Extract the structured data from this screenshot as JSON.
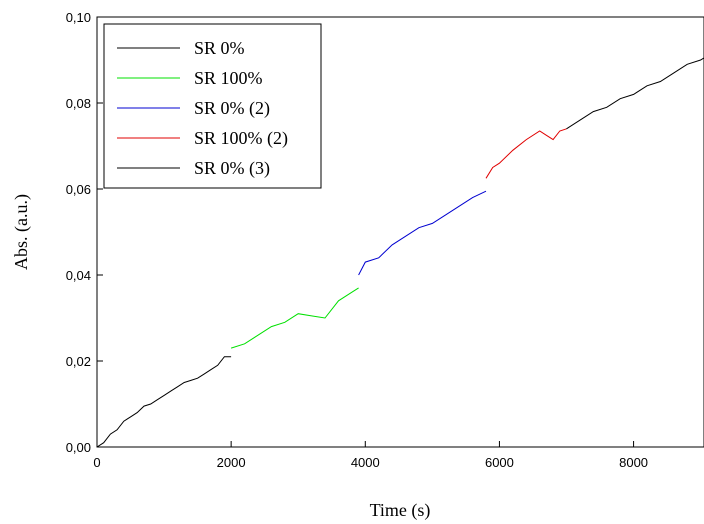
{
  "chart_data": {
    "type": "line",
    "xlabel": "Time (s)",
    "ylabel": "Abs. (a.u.)",
    "xlim": [
      0,
      9050
    ],
    "ylim": [
      0,
      0.1
    ],
    "x_ticks": [
      0,
      2000,
      4000,
      6000,
      8000
    ],
    "x_tick_labels": [
      "0",
      "2000",
      "4000",
      "6000",
      "8000"
    ],
    "y_ticks": [
      0,
      0.02,
      0.04,
      0.06,
      0.08,
      0.1
    ],
    "y_tick_labels": [
      "0,00",
      "0,02",
      "0,04",
      "0,06",
      "0,08",
      "0,10"
    ],
    "grid": false,
    "legend_position": "top-left",
    "series": [
      {
        "name": "SR 0%",
        "color": "#000000",
        "points": [
          [
            0,
            0.0
          ],
          [
            100,
            0.001
          ],
          [
            200,
            0.003
          ],
          [
            300,
            0.004
          ],
          [
            400,
            0.006
          ],
          [
            500,
            0.007
          ],
          [
            600,
            0.008
          ],
          [
            700,
            0.0095
          ],
          [
            800,
            0.01
          ],
          [
            900,
            0.011
          ],
          [
            1000,
            0.012
          ],
          [
            1100,
            0.013
          ],
          [
            1200,
            0.014
          ],
          [
            1300,
            0.015
          ],
          [
            1400,
            0.0155
          ],
          [
            1500,
            0.016
          ],
          [
            1600,
            0.017
          ],
          [
            1700,
            0.018
          ],
          [
            1800,
            0.019
          ],
          [
            1900,
            0.021
          ],
          [
            2000,
            0.021
          ]
        ]
      },
      {
        "name": "SR 100%",
        "color": "#00e000",
        "points": [
          [
            2000,
            0.023
          ],
          [
            2200,
            0.024
          ],
          [
            2400,
            0.026
          ],
          [
            2600,
            0.028
          ],
          [
            2800,
            0.029
          ],
          [
            3000,
            0.031
          ],
          [
            3200,
            0.0305
          ],
          [
            3400,
            0.03
          ],
          [
            3600,
            0.034
          ],
          [
            3800,
            0.036
          ],
          [
            3900,
            0.037
          ]
        ]
      },
      {
        "name": "SR 0% (2)",
        "color": "#0000d0",
        "points": [
          [
            3900,
            0.04
          ],
          [
            4000,
            0.043
          ],
          [
            4200,
            0.044
          ],
          [
            4400,
            0.047
          ],
          [
            4600,
            0.049
          ],
          [
            4800,
            0.051
          ],
          [
            5000,
            0.052
          ],
          [
            5200,
            0.054
          ],
          [
            5400,
            0.056
          ],
          [
            5600,
            0.058
          ],
          [
            5800,
            0.0595
          ]
        ]
      },
      {
        "name": "SR 100% (2)",
        "color": "#e00000",
        "points": [
          [
            5800,
            0.0625
          ],
          [
            5900,
            0.065
          ],
          [
            6000,
            0.066
          ],
          [
            6200,
            0.069
          ],
          [
            6400,
            0.0715
          ],
          [
            6600,
            0.0735
          ],
          [
            6700,
            0.0725
          ],
          [
            6800,
            0.0715
          ],
          [
            6900,
            0.0735
          ],
          [
            7000,
            0.074
          ]
        ]
      },
      {
        "name": "SR 0% (3)",
        "color": "#000000",
        "points": [
          [
            7000,
            0.074
          ],
          [
            7200,
            0.076
          ],
          [
            7400,
            0.078
          ],
          [
            7600,
            0.079
          ],
          [
            7800,
            0.081
          ],
          [
            8000,
            0.082
          ],
          [
            8200,
            0.084
          ],
          [
            8400,
            0.085
          ],
          [
            8600,
            0.087
          ],
          [
            8800,
            0.089
          ],
          [
            9000,
            0.09
          ],
          [
            9050,
            0.0905
          ]
        ]
      }
    ]
  }
}
